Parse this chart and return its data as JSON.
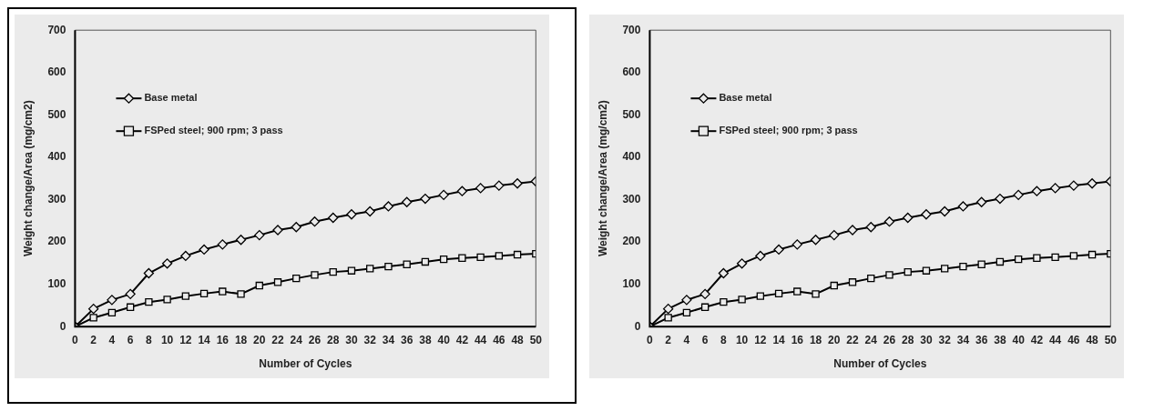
{
  "chart_data": [
    {
      "type": "line",
      "xlabel": "Number of Cycles",
      "ylabel": "Weight change/Area (mg/cm2)",
      "x": [
        0,
        2,
        4,
        6,
        8,
        10,
        12,
        14,
        16,
        18,
        20,
        22,
        24,
        26,
        28,
        30,
        32,
        34,
        36,
        38,
        40,
        42,
        44,
        46,
        48,
        50
      ],
      "series": [
        {
          "name": "Base metal",
          "color": "#000000",
          "marker": "diamond",
          "values": [
            0,
            42,
            63,
            77,
            126,
            149,
            167,
            182,
            194,
            205,
            216,
            228,
            235,
            248,
            257,
            265,
            272,
            284,
            294,
            302,
            311,
            320,
            327,
            333,
            338,
            343
          ]
        },
        {
          "name": "FSPed steel; 900 rpm; 3 pass",
          "color": "#000000",
          "marker": "square",
          "values": [
            0,
            21,
            33,
            46,
            58,
            64,
            72,
            78,
            83,
            77,
            97,
            105,
            114,
            122,
            129,
            132,
            137,
            142,
            147,
            153,
            159,
            162,
            164,
            167,
            170,
            172
          ]
        }
      ],
      "xlim": [
        0,
        50
      ],
      "xticks": [
        0,
        2,
        4,
        6,
        8,
        10,
        12,
        14,
        16,
        18,
        20,
        22,
        24,
        26,
        28,
        30,
        32,
        34,
        36,
        38,
        40,
        42,
        44,
        46,
        48,
        50
      ],
      "ylim": [
        0,
        700
      ],
      "yticks": [
        0,
        100,
        200,
        300,
        400,
        500,
        600,
        700
      ],
      "grid": false,
      "legend": "top left",
      "line_style": "solid"
    },
    {
      "type": "line",
      "xlabel": "Number of Cycles",
      "ylabel": "Weight change/Area (mg/cm2)",
      "x": [
        0,
        2,
        4,
        6,
        8,
        10,
        12,
        14,
        16,
        18,
        20,
        22,
        24,
        26,
        28,
        30,
        32,
        34,
        36,
        38,
        40,
        42,
        44,
        46,
        48,
        50
      ],
      "series": [
        {
          "name": "Base metal",
          "color": "#000000",
          "marker": "diamond",
          "values": [
            0,
            42,
            63,
            77,
            126,
            149,
            167,
            182,
            194,
            205,
            216,
            228,
            235,
            248,
            257,
            265,
            272,
            284,
            294,
            302,
            311,
            320,
            327,
            333,
            338,
            343
          ]
        },
        {
          "name": "FSPed steel; 900 rpm; 3 pass",
          "color": "#000000",
          "marker": "square",
          "values": [
            0,
            21,
            33,
            46,
            58,
            64,
            72,
            78,
            83,
            77,
            97,
            105,
            114,
            122,
            129,
            132,
            137,
            142,
            147,
            153,
            159,
            162,
            164,
            167,
            170,
            172
          ]
        }
      ],
      "xlim": [
        0,
        50
      ],
      "xticks": [
        0,
        2,
        4,
        6,
        8,
        10,
        12,
        14,
        16,
        18,
        20,
        22,
        24,
        26,
        28,
        30,
        32,
        34,
        36,
        38,
        40,
        42,
        44,
        46,
        48,
        50
      ],
      "ylim": [
        0,
        700
      ],
      "yticks": [
        0,
        100,
        200,
        300,
        400,
        500,
        600,
        700
      ],
      "grid": false,
      "legend": "top left",
      "line_style": "solid"
    }
  ]
}
